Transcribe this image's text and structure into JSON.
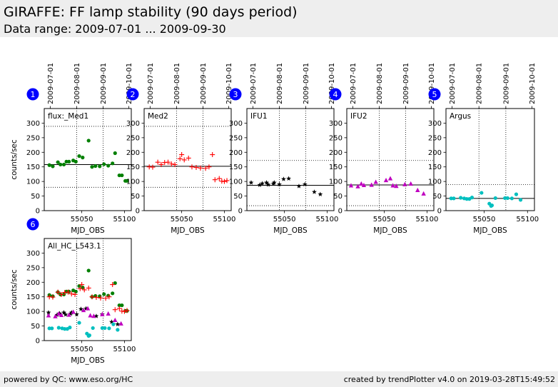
{
  "header": {
    "title": "GIRAFFE: FF lamp stability (90 days period)",
    "subtitle": "Data range: 2009-07-01 ... 2009-09-30"
  },
  "footer": {
    "left": "powered by QC: www.eso.org/HC",
    "right": "created by trendPlotter v4.0 on 2019-03-28T15:49:52"
  },
  "date_ticks": [
    {
      "label": "2009-07-01",
      "mjd": 55013
    },
    {
      "label": "2009-08-01",
      "mjd": 55044
    },
    {
      "label": "2009-09-01",
      "mjd": 55075
    },
    {
      "label": "2009-10-01",
      "mjd": 55105
    }
  ],
  "colors": {
    "green": "#007f00",
    "red": "#ff0000",
    "black": "#000000",
    "magenta": "#bf00bf",
    "cyan": "#00bfbf",
    "badge": "#0000ff"
  },
  "chart_data": [
    {
      "panel": "1",
      "label": "flux:_Med1",
      "type": "scatter",
      "xlabel": "MJD_OBS",
      "ylabel": "counts/sec",
      "xlim": [
        55006,
        55108
      ],
      "ylim": [
        0,
        350
      ],
      "xticks": [
        55050,
        55100
      ],
      "yticks": [
        0,
        50,
        100,
        150,
        200,
        250,
        300
      ],
      "ref_line": 158,
      "limit_lines": [
        289,
        80
      ],
      "date_lines": [
        55044,
        55075
      ],
      "series": [
        {
          "marker": "circle",
          "color": "#007f00",
          "x": [
            55012,
            55016,
            55022,
            55025,
            55029,
            55032,
            55035,
            55040,
            55043,
            55047,
            55051,
            55058,
            55062,
            55066,
            55071,
            55076,
            55081,
            55086,
            55089,
            55094,
            55097,
            55101,
            55103
          ],
          "y": [
            156,
            152,
            166,
            158,
            158,
            168,
            168,
            172,
            168,
            187,
            182,
            240,
            150,
            153,
            152,
            159,
            154,
            162,
            197,
            121,
            121,
            102,
            102
          ]
        }
      ]
    },
    {
      "panel": "2",
      "label": "Med2",
      "type": "scatter",
      "xlabel": "MJD_OBS",
      "ylabel": "",
      "xlim": [
        55006,
        55108
      ],
      "ylim": [
        0,
        350
      ],
      "xticks": [
        55050,
        55100
      ],
      "yticks": [
        0,
        50,
        100,
        150,
        200,
        250,
        300
      ],
      "ref_line": 152,
      "limit_lines": [
        289,
        80
      ],
      "date_lines": [
        55044,
        55075
      ],
      "series": [
        {
          "marker": "plus",
          "color": "#ff0000",
          "x": [
            55012,
            55016,
            55022,
            55026,
            55030,
            55034,
            55038,
            55042,
            55048,
            55050,
            55053,
            55058,
            55062,
            55067,
            55072,
            55078,
            55082,
            55086,
            55089,
            55094,
            55097,
            55100,
            55103
          ],
          "y": [
            150,
            149,
            166,
            158,
            165,
            166,
            160,
            158,
            178,
            192,
            174,
            180,
            150,
            148,
            146,
            145,
            150,
            192,
            106,
            110,
            101,
            100,
            103
          ]
        }
      ]
    },
    {
      "panel": "3",
      "label": "IFU1",
      "type": "scatter",
      "xlabel": "MJD_OBS",
      "ylabel": "",
      "xlim": [
        55006,
        55108
      ],
      "ylim": [
        0,
        350
      ],
      "xticks": [
        55050,
        55100
      ],
      "yticks": [
        0,
        50,
        100,
        150,
        200,
        250,
        300
      ],
      "ref_line": 87,
      "limit_lines": [
        172,
        17
      ],
      "date_lines": [
        55044,
        55075
      ],
      "series": [
        {
          "marker": "star",
          "color": "#000000",
          "x": [
            55011,
            55021,
            55024,
            55029,
            55031,
            55037,
            55038,
            55044,
            55049,
            55055,
            55067,
            55074,
            55085,
            55092
          ],
          "y": [
            96,
            88,
            93,
            96,
            89,
            92,
            96,
            90,
            108,
            110,
            84,
            90,
            64,
            56
          ]
        }
      ]
    },
    {
      "panel": "4",
      "label": "IFU2",
      "type": "scatter",
      "xlabel": "MJD_OBS",
      "ylabel": "",
      "xlim": [
        55006,
        55108
      ],
      "ylim": [
        0,
        350
      ],
      "xticks": [
        55050,
        55100
      ],
      "yticks": [
        0,
        50,
        100,
        150,
        200,
        250,
        300
      ],
      "ref_line": 88,
      "limit_lines": [
        172,
        17
      ],
      "date_lines": [
        55044,
        55075
      ],
      "series": [
        {
          "marker": "triangle",
          "color": "#bf00bf",
          "x": [
            55011,
            55019,
            55023,
            55026,
            55035,
            55040,
            55052,
            55057,
            55060,
            55064,
            55074,
            55081,
            55089,
            55096
          ],
          "y": [
            86,
            83,
            92,
            87,
            88,
            98,
            104,
            110,
            86,
            84,
            90,
            92,
            70,
            58
          ]
        }
      ]
    },
    {
      "panel": "5",
      "label": "Argus",
      "type": "scatter",
      "xlabel": "MJD_OBS",
      "ylabel": "",
      "xlim": [
        55006,
        55108
      ],
      "ylim": [
        0,
        350
      ],
      "xticks": [
        55050,
        55100
      ],
      "yticks": [
        0,
        50,
        100,
        150,
        200,
        250,
        300
      ],
      "ref_line": 42,
      "limit_lines": [
        89
      ],
      "date_lines": [
        55044,
        55075
      ],
      "series": [
        {
          "marker": "circle",
          "color": "#00bfbf",
          "x": [
            55012,
            55015,
            55023,
            55027,
            55030,
            55033,
            55036,
            55047,
            55056,
            55058,
            55059,
            55063,
            55074,
            55077,
            55082,
            55087,
            55092
          ],
          "y": [
            42,
            42,
            44,
            42,
            40,
            40,
            45,
            61,
            24,
            16,
            18,
            43,
            43,
            43,
            42,
            56,
            37
          ]
        }
      ]
    },
    {
      "panel": "6",
      "label": "All_HC_L543.1",
      "type": "scatter",
      "xlabel": "MJD_OBS",
      "ylabel": "counts/sec",
      "xlim": [
        55006,
        55108
      ],
      "ylim": [
        0,
        350
      ],
      "xticks": [
        55050,
        55100
      ],
      "yticks": [
        0,
        50,
        100,
        150,
        200,
        250,
        300
      ],
      "ref_line": null,
      "limit_lines": [],
      "date_lines": [
        55044,
        55075
      ],
      "series": [
        {
          "marker": "circle",
          "color": "#007f00",
          "x": [
            55012,
            55016,
            55022,
            55025,
            55029,
            55032,
            55035,
            55040,
            55043,
            55047,
            55051,
            55058,
            55062,
            55066,
            55071,
            55076,
            55081,
            55086,
            55089,
            55094,
            55097,
            55101,
            55103
          ],
          "y": [
            156,
            152,
            166,
            158,
            158,
            168,
            168,
            172,
            168,
            187,
            182,
            240,
            150,
            153,
            152,
            159,
            154,
            162,
            197,
            121,
            121,
            102,
            102
          ]
        },
        {
          "marker": "plus",
          "color": "#ff0000",
          "x": [
            55012,
            55016,
            55022,
            55026,
            55030,
            55034,
            55038,
            55042,
            55048,
            55050,
            55053,
            55058,
            55062,
            55067,
            55072,
            55078,
            55082,
            55086,
            55089,
            55094,
            55097,
            55100,
            55103
          ],
          "y": [
            150,
            149,
            166,
            158,
            165,
            166,
            160,
            158,
            178,
            192,
            174,
            180,
            150,
            148,
            146,
            145,
            150,
            192,
            106,
            110,
            101,
            100,
            103
          ]
        },
        {
          "marker": "star",
          "color": "#000000",
          "x": [
            55011,
            55021,
            55024,
            55029,
            55031,
            55037,
            55038,
            55044,
            55049,
            55055,
            55067,
            55074,
            55085,
            55092
          ],
          "y": [
            96,
            88,
            93,
            96,
            89,
            92,
            96,
            90,
            108,
            110,
            84,
            90,
            64,
            56
          ]
        },
        {
          "marker": "triangle",
          "color": "#bf00bf",
          "x": [
            55011,
            55019,
            55023,
            55026,
            55035,
            55040,
            55052,
            55057,
            55060,
            55064,
            55074,
            55081,
            55089,
            55096
          ],
          "y": [
            86,
            83,
            92,
            87,
            88,
            98,
            104,
            110,
            86,
            84,
            90,
            92,
            70,
            58
          ]
        },
        {
          "marker": "circle",
          "color": "#00bfbf",
          "x": [
            55012,
            55015,
            55023,
            55027,
            55030,
            55033,
            55036,
            55047,
            55056,
            55058,
            55059,
            55063,
            55074,
            55077,
            55082,
            55087,
            55092
          ],
          "y": [
            42,
            42,
            44,
            42,
            40,
            40,
            45,
            61,
            24,
            16,
            18,
            43,
            43,
            43,
            42,
            56,
            37
          ]
        }
      ]
    }
  ]
}
